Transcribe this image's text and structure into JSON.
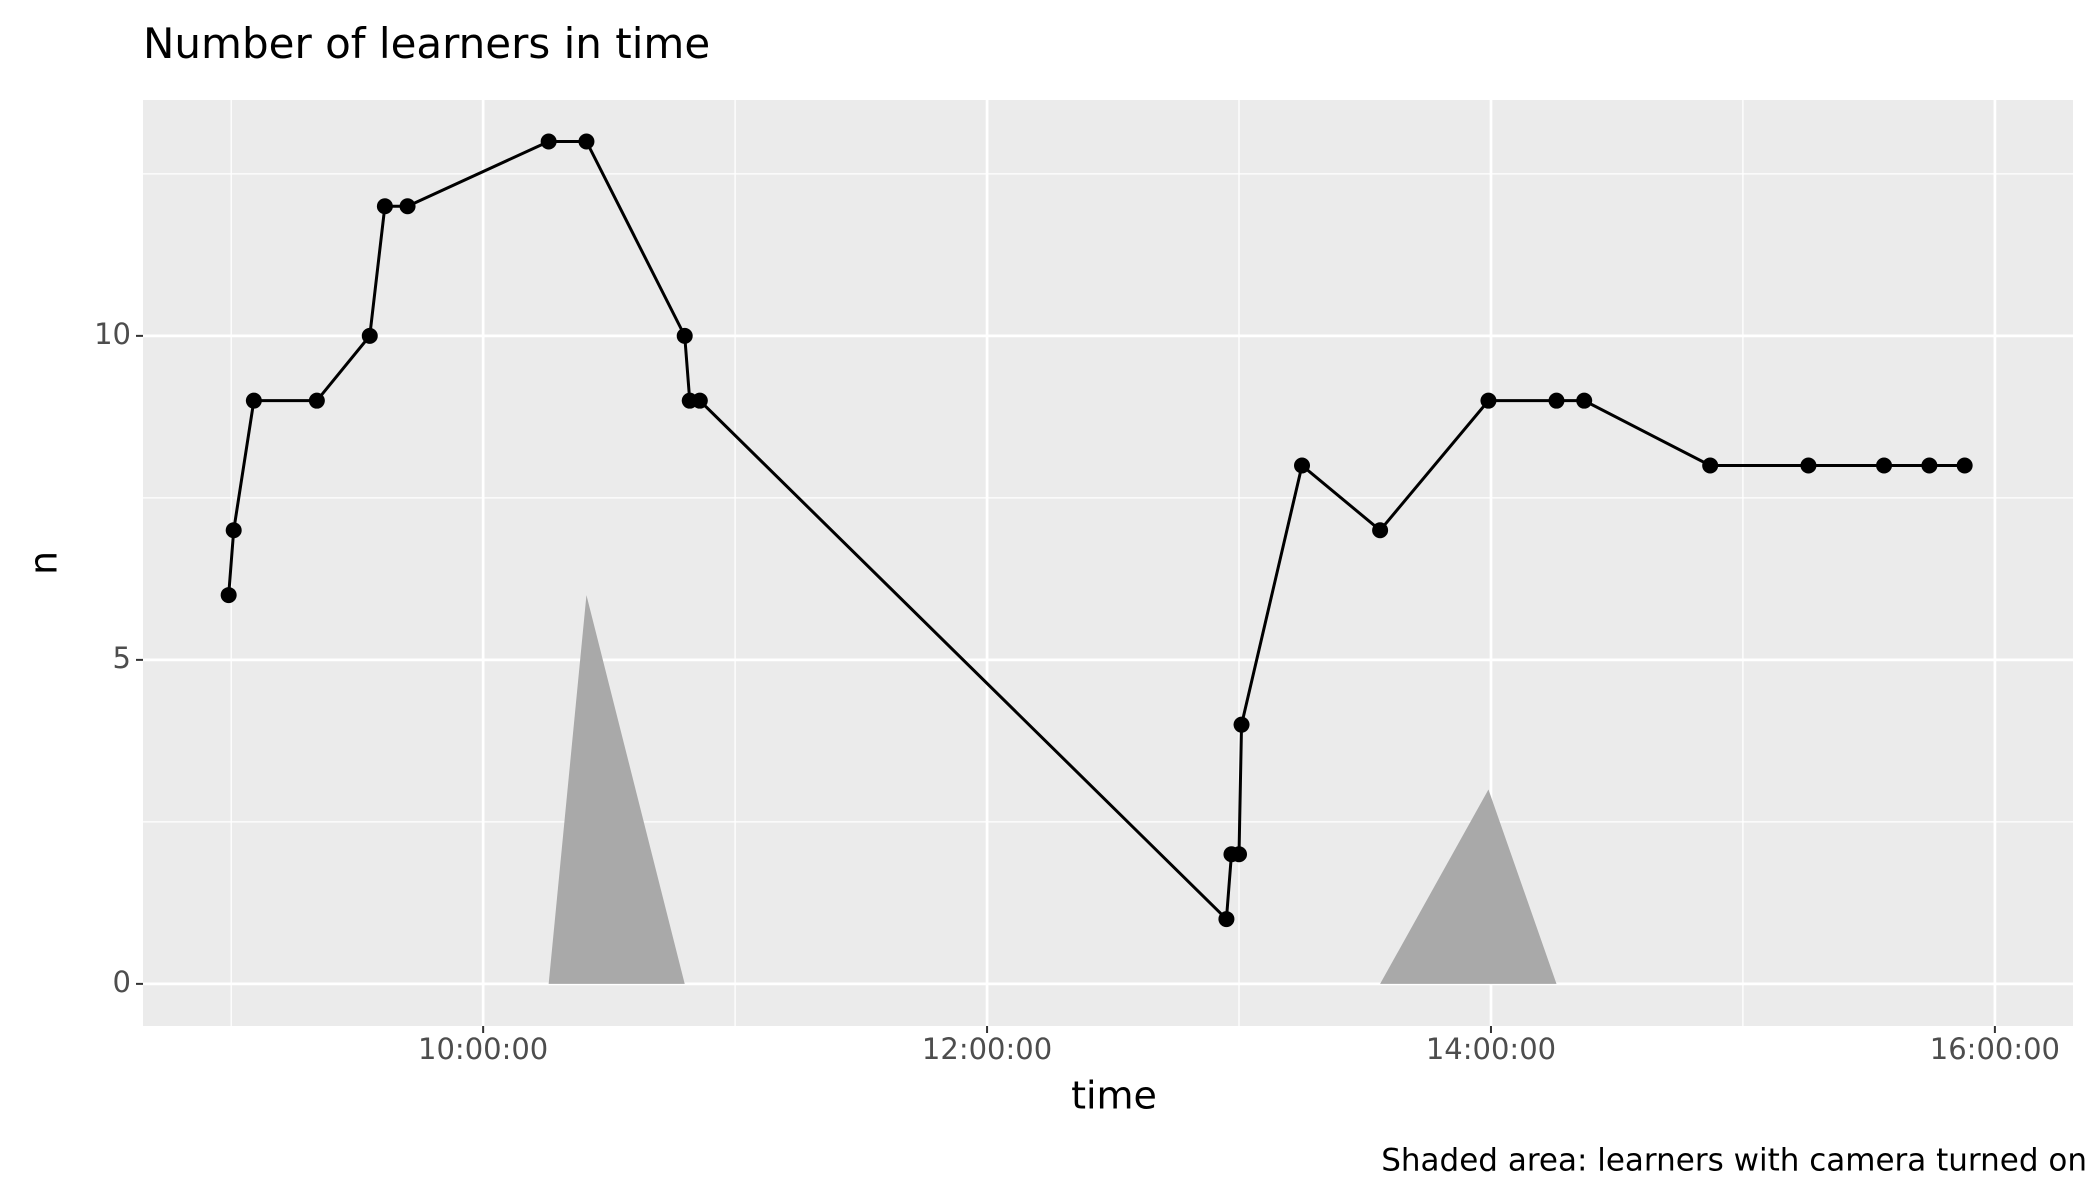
{
  "chart_data": {
    "type": "line",
    "title": "Number of learners in time",
    "x_label": "time",
    "y_label": "n",
    "caption": "Shaded area: learners with camera turned on",
    "x": [
      8.99,
      9.01,
      9.09,
      9.34,
      9.55,
      9.61,
      9.7,
      10.26,
      10.41,
      10.8,
      10.82,
      10.86,
      12.95,
      12.97,
      13.0,
      13.01,
      13.25,
      13.56,
      13.99,
      14.26,
      14.37,
      14.87,
      15.26,
      15.56,
      15.74,
      15.88
    ],
    "values": [
      6,
      7,
      9,
      9,
      10,
      12,
      12,
      13,
      13,
      10,
      9,
      9,
      1,
      2,
      2,
      4,
      8,
      7,
      9,
      9,
      9,
      8,
      8,
      8,
      8,
      8
    ],
    "color": "#000000",
    "area": {
      "x": [
        10.26,
        10.41,
        10.8,
        null,
        13.56,
        13.99,
        14.26
      ],
      "values": [
        0,
        6,
        0,
        null,
        0,
        3,
        0
      ],
      "color": "#a9a9a9"
    },
    "xlim": [
      8.65,
      16.31
    ],
    "ylim": [
      -0.65,
      13.64
    ],
    "xticks": [
      {
        "value": 10,
        "label": "10:00:00"
      },
      {
        "value": 12,
        "label": "12:00:00"
      },
      {
        "value": 14,
        "label": "14:00:00"
      },
      {
        "value": 16,
        "label": "16:00:00"
      }
    ],
    "yticks": [
      0,
      5,
      10
    ],
    "x_minor_grid": [
      9,
      11,
      13,
      15
    ],
    "y_minor_grid": [
      2.5,
      7.5,
      12.5
    ],
    "grid": true
  }
}
